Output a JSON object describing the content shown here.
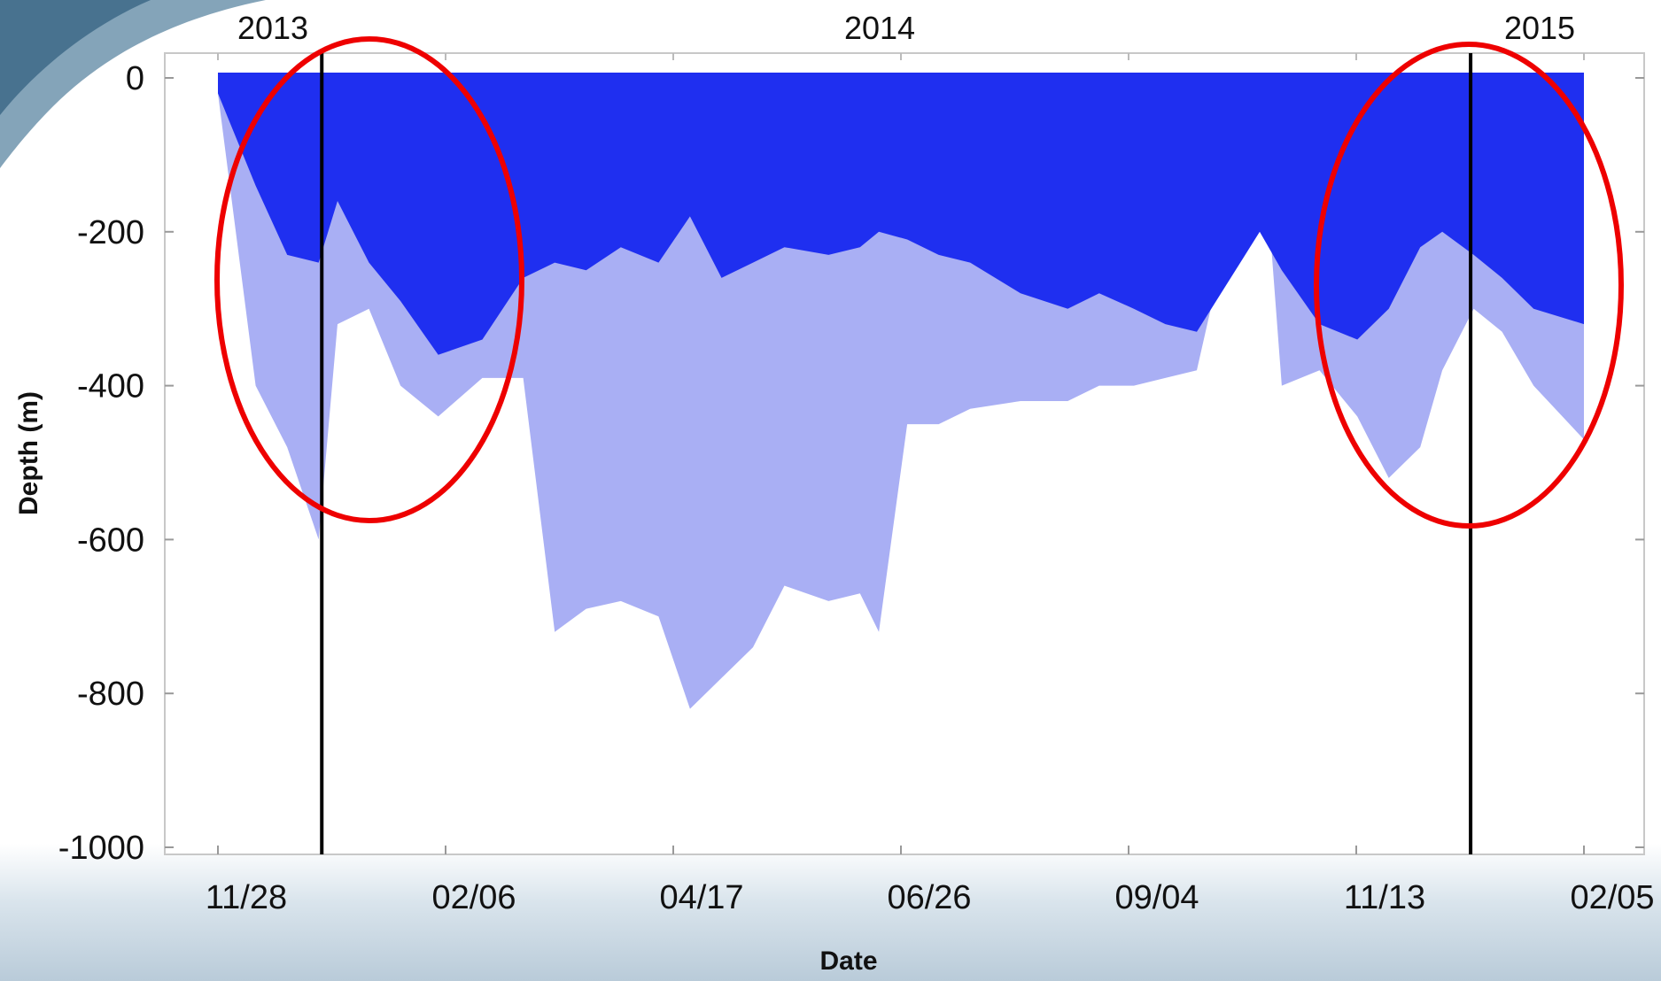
{
  "chart_data": {
    "type": "area",
    "title": "",
    "xlabel": "Date",
    "ylabel": "Depth (m)",
    "x_tick_labels": [
      "11/28",
      "02/06",
      "04/17",
      "06/26",
      "09/04",
      "11/13",
      "02/05"
    ],
    "y_ticks": [
      0,
      -200,
      -400,
      -600,
      -800,
      -1000
    ],
    "ylim": [
      -1000,
      0
    ],
    "year_labels": [
      "2013",
      "2014",
      "2015"
    ],
    "grid": false,
    "x": [
      "2013-11-28",
      "2013-12-10",
      "2013-12-20",
      "2013-12-30",
      "2014-01-05",
      "2014-01-15",
      "2014-01-25",
      "2014-02-06",
      "2014-02-20",
      "2014-03-05",
      "2014-03-15",
      "2014-03-25",
      "2014-04-05",
      "2014-04-17",
      "2014-04-27",
      "2014-05-07",
      "2014-05-17",
      "2014-05-27",
      "2014-06-10",
      "2014-06-20",
      "2014-06-26",
      "2014-07-05",
      "2014-07-15",
      "2014-07-25",
      "2014-08-10",
      "2014-08-25",
      "2014-09-04",
      "2014-09-15",
      "2014-09-25",
      "2014-10-05",
      "2014-10-25",
      "2014-11-01",
      "2014-11-13",
      "2014-11-25",
      "2014-12-05",
      "2014-12-15",
      "2014-12-22",
      "2015-01-01",
      "2015-01-10",
      "2015-01-20",
      "2015-02-05"
    ],
    "series": [
      {
        "values": [
          -20,
          -140,
          -230,
          -240,
          -160,
          -240,
          -290,
          -360,
          -340,
          -260,
          -240,
          -250,
          -220,
          -240,
          -180,
          -260,
          -240,
          -220,
          -230,
          -220,
          -200,
          -210,
          -230,
          -240,
          -280,
          -300,
          -280,
          -300,
          -320,
          -330,
          -200,
          -250,
          -320,
          -340,
          -300,
          -220,
          -200,
          -230,
          -260,
          -300,
          -320
        ],
        "color": "#1f2ff0"
      },
      {
        "values": [
          -20,
          -400,
          -480,
          -600,
          -320,
          -300,
          -400,
          -440,
          -390,
          -390,
          -720,
          -690,
          -680,
          -700,
          -820,
          -780,
          -740,
          -660,
          -680,
          -670,
          -720,
          -450,
          -450,
          -430,
          -420,
          -420,
          -400,
          -400,
          -390,
          -380,
          -20,
          -400,
          -380,
          -440,
          -520,
          -480,
          -380,
          -300,
          -330,
          -400,
          -470
        ],
        "color": "#a9aff4"
      }
    ],
    "annotations": {
      "year_dividers": [
        "2013-12-31",
        "2014-12-31"
      ],
      "highlight_color": "#ee0000",
      "divider_color": "#000000"
    }
  }
}
